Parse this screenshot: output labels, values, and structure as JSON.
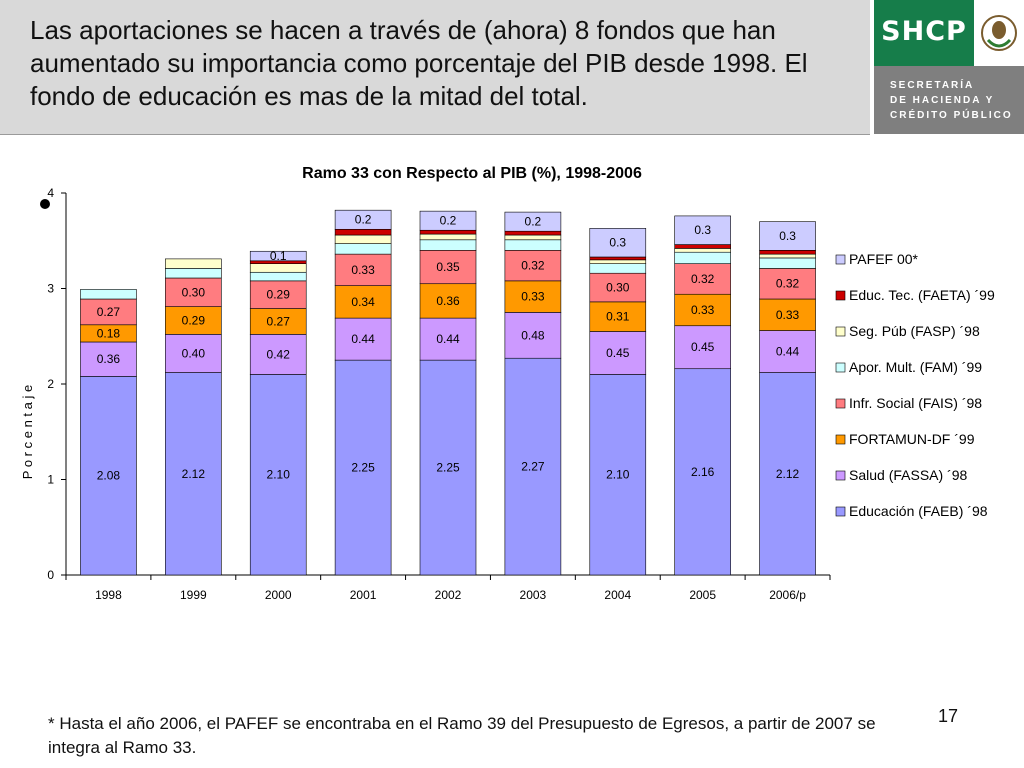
{
  "header": {
    "text": "Las aportaciones se hacen a través de (ahora) 8 fondos que han aumentado su importancia como porcentaje del PIB desde 1998. El fondo de educación es mas de la mitad del total."
  },
  "logo": {
    "word": "SHCP",
    "lines": [
      "SECRETARÍA",
      "DE HACIENDA Y",
      "CRÉDITO PÚBLICO"
    ]
  },
  "chart_data": {
    "type": "bar",
    "stacked": true,
    "title": "Ramo 33 con Respecto al PIB (%), 1998-2006",
    "xlabel": "",
    "ylabel": "P o r c e n t a j e",
    "ylim": [
      0,
      4
    ],
    "yticks": [
      "0",
      "1",
      "2",
      "3",
      "4"
    ],
    "grid": false,
    "legend_position": "right",
    "categories": [
      "1998",
      "1999",
      "2000",
      "2001",
      "2002",
      "2003",
      "2004",
      "2005",
      "2006/p"
    ],
    "series": [
      {
        "name": "Educación (FAEB) ´98",
        "color": "#9999ff",
        "values": [
          2.08,
          2.12,
          2.1,
          2.25,
          2.25,
          2.27,
          2.1,
          2.16,
          2.12
        ],
        "labels": [
          "2.08",
          "2.12",
          "2.10",
          "2.25",
          "2.25",
          "2.27",
          "2.10",
          "2.16",
          "2.12"
        ]
      },
      {
        "name": "Salud (FASSA) ´98",
        "color": "#cc99ff",
        "values": [
          0.36,
          0.4,
          0.42,
          0.44,
          0.44,
          0.48,
          0.45,
          0.45,
          0.44
        ],
        "labels": [
          "0.36",
          "0.40",
          "0.42",
          "0.44",
          "0.44",
          "0.48",
          "0.45",
          "0.45",
          "0.44"
        ]
      },
      {
        "name": "FORTAMUN-DF ´99",
        "color": "#ff9900",
        "values": [
          0.18,
          0.29,
          0.27,
          0.34,
          0.36,
          0.33,
          0.31,
          0.33,
          0.33
        ],
        "labels": [
          "0.18",
          "0.29",
          "0.27",
          "0.34",
          "0.36",
          "0.33",
          "0.31",
          "0.33",
          "0.33"
        ]
      },
      {
        "name": "Infr. Social (FAIS) ´98",
        "color": "#ff7c80",
        "values": [
          0.27,
          0.3,
          0.29,
          0.33,
          0.35,
          0.32,
          0.3,
          0.32,
          0.32
        ],
        "labels": [
          "0.27",
          "0.30",
          "0.29",
          "0.33",
          "0.35",
          "0.32",
          "0.30",
          "0.32",
          "0.32"
        ]
      },
      {
        "name": "Apor. Mult. (FAM) ´99",
        "color": "#ccffff",
        "values": [
          0.1,
          0.1,
          0.09,
          0.11,
          0.11,
          0.11,
          0.1,
          0.12,
          0.11
        ],
        "labels": [
          "",
          "",
          "",
          "",
          "",
          "",
          "",
          "",
          ""
        ]
      },
      {
        "name": "Seg. Púb (FASP) ´98",
        "color": "#ffffcc",
        "values": [
          0.0,
          0.1,
          0.09,
          0.09,
          0.06,
          0.05,
          0.04,
          0.04,
          0.04
        ],
        "labels": [
          "",
          "",
          "",
          "",
          "",
          "",
          "",
          "",
          ""
        ]
      },
      {
        "name": "Educ. Tec. (FAETA) ´99",
        "color": "#cc0000",
        "values": [
          0.0,
          0.0,
          0.03,
          0.06,
          0.04,
          0.04,
          0.03,
          0.04,
          0.04
        ],
        "labels": [
          "",
          "",
          "",
          "",
          "",
          "",
          "",
          "",
          ""
        ]
      },
      {
        "name": "PAFEF 00*",
        "color": "#ccccff",
        "values": [
          0.0,
          0.0,
          0.1,
          0.2,
          0.2,
          0.2,
          0.3,
          0.3,
          0.3
        ],
        "labels": [
          "",
          "",
          "0.1",
          "0.2",
          "0.2",
          "0.2",
          "0.3",
          "0.3",
          "0.3"
        ]
      }
    ]
  },
  "footnote": "* Hasta el año 2006, el PAFEF se encontraba en el Ramo 39 del Presupuesto de Egresos, a partir de 2007 se integra al Ramo 33.",
  "page_number": "17"
}
